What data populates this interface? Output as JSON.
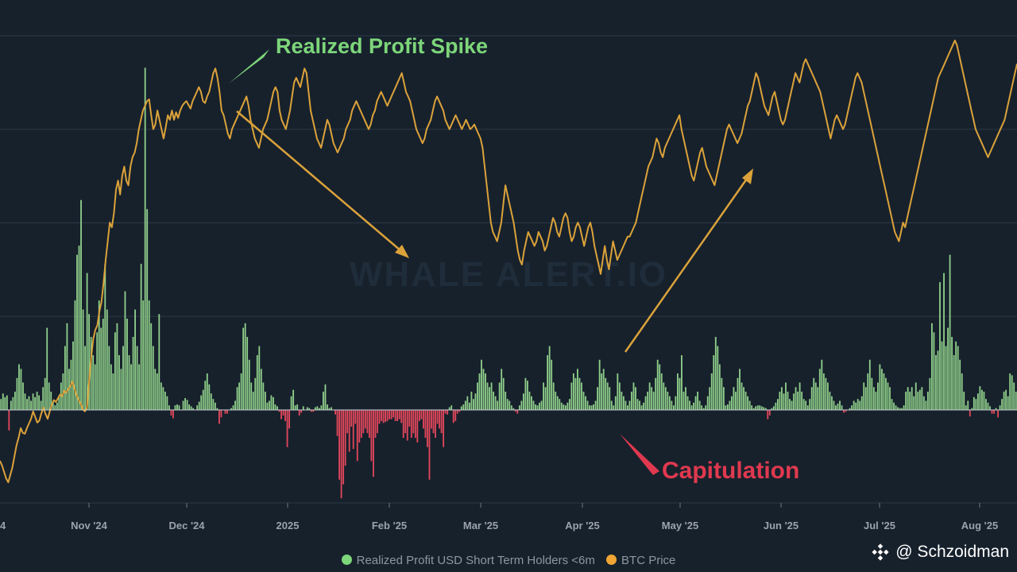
{
  "chart_data": {
    "type": "bar+line",
    "watermark": "WHALE ALERT.IO",
    "x_ticks": [
      "4",
      "Nov '24",
      "Dec '24",
      "2025",
      "Feb '25",
      "Mar '25",
      "Apr '25",
      "May '25",
      "Jun '25",
      "Jul '25",
      "Aug '25"
    ],
    "y_grid_lines": 5,
    "profit_range": [
      -1.0,
      4.1
    ],
    "price_range": [
      0.0,
      5.0
    ],
    "series": [
      {
        "name": "Realized Profit USD Short Term Holders <6m",
        "type": "bar",
        "color_positive": "#8fcf8a",
        "color_negative": "#e3475c",
        "values": [
          0.12,
          0.18,
          0.14,
          0.16,
          -0.22,
          0.1,
          0.14,
          0.2,
          0.35,
          0.5,
          0.45,
          0.3,
          0.18,
          0.12,
          0.15,
          0.1,
          0.18,
          0.14,
          0.2,
          0.16,
          0.1,
          0.25,
          0.35,
          0.9,
          0.3,
          0.2,
          0.1,
          0.05,
          0.08,
          0.15,
          0.3,
          0.4,
          0.7,
          0.95,
          0.45,
          0.55,
          0.75,
          1.2,
          1.7,
          1.8,
          2.3,
          1.1,
          0.7,
          1.5,
          1.05,
          0.8,
          0.6,
          0.5,
          0.85,
          1.2,
          0.9,
          1.0,
          1.6,
          1.1,
          0.7,
          0.5,
          0.4,
          0.85,
          0.95,
          0.6,
          0.45,
          0.7,
          1.3,
          1.0,
          0.6,
          0.5,
          0.8,
          1.1,
          0.7,
          0.5,
          1.6,
          1.2,
          3.75,
          2.2,
          1.2,
          0.95,
          0.7,
          0.45,
          0.4,
          1.05,
          0.3,
          0.25,
          0.2,
          0.15,
          0.05,
          -0.06,
          -0.09,
          0.05,
          0.06,
          0.05,
          0.0,
          0.1,
          0.13,
          0.11,
          0.06,
          0.04,
          0.02,
          0.0,
          0.05,
          0.09,
          0.16,
          0.22,
          0.32,
          0.4,
          0.28,
          0.18,
          0.12,
          0.08,
          0.02,
          -0.15,
          -0.08,
          0.0,
          -0.04,
          -0.04,
          0.0,
          0.02,
          0.05,
          0.1,
          0.25,
          0.3,
          0.4,
          0.9,
          0.95,
          0.8,
          0.55,
          0.3,
          0.2,
          0.35,
          0.6,
          0.7,
          0.45,
          0.3,
          0.2,
          0.08,
          0.1,
          0.16,
          0.14,
          0.06,
          0.04,
          -0.02,
          -0.1,
          -0.06,
          -0.12,
          -0.4,
          -0.2,
          0.15,
          0.22,
          0.05,
          0.06,
          -0.06,
          -0.03,
          0.04,
          0.0,
          0.03,
          0.02,
          -0.02,
          -0.02,
          0.03,
          0.04,
          0.02,
          0.05,
          0.2,
          0.28,
          0.06,
          0.02,
          0.03,
          0.0,
          -0.05,
          -0.28,
          -0.75,
          -0.95,
          -0.8,
          -0.6,
          -0.25,
          -0.45,
          -0.18,
          -0.42,
          -0.15,
          -0.55,
          -0.35,
          -0.3,
          -0.25,
          -0.2,
          -0.25,
          -0.3,
          -0.55,
          -0.72,
          -0.3,
          -0.25,
          -0.15,
          -0.12,
          -0.14,
          -0.13,
          -0.12,
          -0.1,
          -0.1,
          -0.08,
          -0.12,
          -0.12,
          -0.1,
          -0.14,
          -0.3,
          -0.25,
          -0.33,
          -0.18,
          -0.3,
          -0.25,
          -0.3,
          -0.35,
          -0.12,
          -0.1,
          -0.2,
          -0.3,
          -0.4,
          -0.75,
          -0.2,
          -0.25,
          -0.3,
          -0.15,
          -0.2,
          -0.25,
          -0.4,
          -0.04,
          -0.05,
          0.03,
          0.05,
          -0.14,
          -0.12,
          -0.04,
          -0.02,
          0.04,
          0.06,
          0.1,
          0.15,
          0.08,
          0.2,
          0.12,
          0.18,
          0.3,
          0.4,
          0.55,
          0.45,
          0.4,
          0.3,
          0.25,
          0.3,
          0.2,
          0.15,
          0.1,
          0.3,
          0.45,
          0.35,
          0.2,
          0.12,
          0.1,
          0.05,
          0.02,
          -0.02,
          -0.04,
          0.05,
          0.1,
          0.18,
          0.35,
          0.32,
          0.2,
          0.15,
          0.1,
          0.06,
          0.05,
          0.08,
          0.1,
          0.3,
          0.25,
          0.6,
          0.7,
          0.55,
          0.3,
          0.2,
          0.15,
          0.12,
          0.08,
          0.06,
          0.05,
          0.08,
          0.12,
          0.3,
          0.4,
          0.35,
          0.45,
          0.35,
          0.3,
          0.2,
          0.15,
          0.1,
          0.05,
          0.05,
          0.06,
          0.1,
          0.25,
          0.55,
          0.4,
          0.45,
          0.35,
          0.3,
          0.25,
          0.1,
          0.05,
          0.15,
          0.4,
          0.3,
          0.2,
          0.15,
          0.1,
          0.05,
          0.1,
          0.2,
          0.3,
          0.25,
          0.12,
          0.1,
          0.05,
          0.08,
          0.15,
          0.2,
          0.3,
          0.25,
          0.2,
          0.35,
          0.55,
          0.5,
          0.4,
          0.3,
          0.25,
          0.2,
          0.15,
          0.1,
          0.05,
          0.15,
          0.4,
          0.35,
          0.6,
          0.2,
          0.25,
          0.15,
          0.1,
          0.05,
          0.08,
          0.15,
          0.2,
          0.1,
          0.05,
          0.02,
          0.05,
          0.15,
          0.25,
          0.4,
          0.6,
          0.8,
          0.7,
          0.5,
          0.35,
          0.25,
          0.05,
          0.06,
          0.1,
          0.15,
          0.25,
          0.2,
          0.35,
          0.45,
          0.3,
          0.25,
          0.2,
          0.15,
          0.1,
          0.05,
          0.02,
          0.04,
          0.05,
          0.05,
          0.04,
          0.03,
          0.02,
          -0.1,
          -0.06,
          0.02,
          0.04,
          0.08,
          0.12,
          0.2,
          0.25,
          0.18,
          0.3,
          0.2,
          0.12,
          0.1,
          0.18,
          0.25,
          0.2,
          0.3,
          0.2,
          0.12,
          0.1,
          0.05,
          0.12,
          0.25,
          0.35,
          0.3,
          0.25,
          0.45,
          0.55,
          0.4,
          0.35,
          0.3,
          0.2,
          0.15,
          0.1,
          0.05,
          0.07,
          0.1,
          0.05,
          -0.03,
          -0.02,
          0.0,
          0.02,
          0.05,
          0.1,
          0.08,
          0.12,
          0.1,
          0.15,
          0.3,
          0.25,
          0.4,
          0.55,
          0.35,
          0.25,
          0.2,
          0.3,
          0.5,
          0.45,
          0.4,
          0.35,
          0.3,
          0.25,
          0.12,
          0.08,
          0.05,
          0.03,
          0.02,
          0.02,
          0.05,
          0.2,
          0.25,
          0.2,
          0.25,
          0.15,
          0.3,
          0.2,
          0.22,
          0.25,
          0.15,
          0.1,
          0.2,
          0.35,
          0.95,
          0.85,
          0.6,
          0.65,
          1.4,
          0.75,
          1.5,
          0.7,
          0.9,
          1.7,
          0.8,
          0.6,
          0.75,
          0.7,
          0.55,
          0.4,
          0.2,
          0.05,
          0.1,
          -0.07,
          0.02,
          0.14,
          0.12,
          0.18,
          0.26,
          0.22,
          0.2,
          0.12,
          0.08,
          0.04,
          -0.04,
          -0.04,
          0.02,
          -0.08,
          0.05,
          0.12,
          0.2,
          0.22,
          0.15,
          0.4,
          0.38,
          0.3,
          0.2
        ]
      },
      {
        "name": "BTC Price",
        "type": "line",
        "color": "#dba23a",
        "values": [
          0.45,
          0.4,
          0.33,
          0.26,
          0.22,
          0.3,
          0.38,
          0.5,
          0.62,
          0.7,
          0.8,
          0.75,
          0.74,
          0.8,
          0.85,
          0.9,
          0.98,
          0.92,
          0.86,
          0.88,
          0.96,
          1.02,
          0.95,
          0.9,
          0.98,
          1.05,
          1.1,
          1.08,
          1.12,
          1.16,
          1.14,
          1.2,
          1.18,
          1.22,
          1.25,
          1.3,
          1.22,
          1.15,
          1.1,
          1.06,
          1.0,
          0.98,
          1.02,
          1.3,
          1.55,
          1.75,
          1.85,
          1.9,
          2.05,
          2.15,
          2.35,
          2.6,
          2.8,
          3.0,
          2.95,
          3.1,
          3.35,
          3.45,
          3.3,
          3.5,
          3.6,
          3.45,
          3.4,
          3.6,
          3.7,
          3.75,
          3.85,
          4.0,
          4.1,
          4.2,
          4.25,
          4.3,
          4.32,
          4.15,
          4.0,
          4.05,
          4.2,
          4.1,
          4.0,
          3.9,
          4.02,
          4.15,
          4.1,
          4.2,
          4.1,
          4.18,
          4.12,
          4.2,
          4.25,
          4.28,
          4.3,
          4.26,
          4.22,
          4.3,
          4.35,
          4.4,
          4.45,
          4.4,
          4.3,
          4.28,
          4.35,
          4.4,
          4.5,
          4.6,
          4.65,
          4.55,
          4.4,
          4.2,
          4.15,
          4.05,
          3.95,
          3.9,
          4.0,
          4.05,
          4.1,
          4.15,
          4.2,
          4.25,
          4.3,
          4.35,
          4.25,
          4.1,
          4.0,
          3.9,
          3.85,
          3.8,
          3.9,
          4.0,
          4.05,
          4.1,
          4.2,
          4.3,
          4.4,
          4.45,
          4.4,
          4.2,
          4.1,
          4.05,
          4.0,
          4.1,
          4.2,
          4.35,
          4.5,
          4.55,
          4.5,
          4.45,
          4.55,
          4.65,
          4.6,
          4.4,
          4.2,
          4.1,
          4.0,
          3.9,
          3.85,
          3.8,
          3.9,
          4.0,
          4.1,
          4.05,
          3.95,
          3.85,
          3.8,
          3.75,
          3.8,
          3.85,
          3.9,
          4.0,
          4.05,
          4.1,
          4.2,
          4.25,
          4.3,
          4.25,
          4.2,
          4.15,
          4.1,
          4.05,
          4.0,
          4.05,
          4.15,
          4.2,
          4.3,
          4.35,
          4.4,
          4.35,
          4.3,
          4.25,
          4.3,
          4.35,
          4.4,
          4.45,
          4.5,
          4.55,
          4.6,
          4.5,
          4.4,
          4.35,
          4.3,
          4.2,
          4.1,
          4.0,
          3.95,
          3.9,
          3.85,
          3.9,
          4.0,
          4.05,
          4.1,
          4.2,
          4.3,
          4.35,
          4.3,
          4.25,
          4.2,
          4.1,
          4.05,
          4.0,
          4.05,
          4.1,
          4.15,
          4.1,
          4.05,
          4.0,
          4.05,
          4.1,
          4.05,
          4.0,
          4.02,
          4.05,
          4.0,
          3.95,
          3.9,
          3.8,
          3.6,
          3.4,
          3.2,
          3.0,
          2.9,
          2.85,
          2.8,
          2.9,
          3.0,
          3.2,
          3.4,
          3.3,
          3.2,
          3.1,
          3.0,
          2.85,
          2.7,
          2.6,
          2.55,
          2.7,
          2.8,
          2.9,
          2.85,
          2.8,
          2.75,
          2.8,
          2.9,
          2.85,
          2.8,
          2.7,
          2.75,
          2.85,
          2.95,
          3.05,
          3.0,
          2.9,
          2.85,
          2.95,
          3.05,
          3.1,
          3.05,
          2.9,
          2.8,
          2.85,
          2.95,
          3.0,
          2.95,
          2.85,
          2.75,
          2.85,
          2.95,
          3.0,
          2.9,
          2.75,
          2.65,
          2.55,
          2.45,
          2.6,
          2.75,
          2.6,
          2.5,
          2.65,
          2.8,
          2.7,
          2.6,
          2.65,
          2.7,
          2.75,
          2.8,
          2.85,
          2.85,
          2.9,
          2.95,
          3.0,
          3.1,
          3.2,
          3.3,
          3.4,
          3.5,
          3.6,
          3.65,
          3.7,
          3.8,
          3.9,
          3.85,
          3.75,
          3.7,
          3.8,
          3.85,
          3.9,
          3.95,
          4.0,
          4.05,
          4.1,
          4.15,
          4.0,
          3.9,
          3.8,
          3.7,
          3.6,
          3.5,
          3.45,
          3.55,
          3.65,
          3.75,
          3.8,
          3.7,
          3.6,
          3.55,
          3.5,
          3.45,
          3.4,
          3.5,
          3.6,
          3.7,
          3.8,
          3.9,
          4.0,
          4.05,
          4.0,
          3.95,
          3.9,
          3.85,
          3.9,
          3.95,
          4.05,
          4.15,
          4.25,
          4.3,
          4.4,
          4.5,
          4.6,
          4.55,
          4.45,
          4.35,
          4.25,
          4.2,
          4.15,
          4.25,
          4.35,
          4.4,
          4.3,
          4.2,
          4.1,
          4.05,
          4.1,
          4.2,
          4.3,
          4.4,
          4.5,
          4.6,
          4.55,
          4.5,
          4.6,
          4.7,
          4.75,
          4.7,
          4.65,
          4.6,
          4.55,
          4.5,
          4.45,
          4.4,
          4.3,
          4.2,
          4.1,
          4.0,
          3.9,
          4.0,
          4.1,
          4.15,
          4.1,
          4.05,
          4.0,
          4.05,
          4.15,
          4.25,
          4.35,
          4.45,
          4.55,
          4.6,
          4.55,
          4.5,
          4.4,
          4.3,
          4.2,
          4.1,
          4.0,
          3.9,
          3.8,
          3.7,
          3.6,
          3.5,
          3.4,
          3.3,
          3.2,
          3.1,
          3.0,
          2.9,
          2.85,
          2.8,
          2.9,
          3.0,
          2.95,
          3.05,
          3.15,
          3.25,
          3.35,
          3.45,
          3.55,
          3.65,
          3.75,
          3.85,
          3.95,
          4.05,
          4.15,
          4.25,
          4.35,
          4.45,
          4.55,
          4.6,
          4.65,
          4.7,
          4.75,
          4.8,
          4.85,
          4.9,
          4.95,
          4.9,
          4.8,
          4.7,
          4.6,
          4.5,
          4.4,
          4.3,
          4.2,
          4.1,
          4.0,
          3.95,
          3.9,
          3.85,
          3.8,
          3.75,
          3.7,
          3.75,
          3.8,
          3.85,
          3.9,
          3.95,
          4.0,
          4.05,
          4.1,
          4.2,
          4.3,
          4.4,
          4.5,
          4.6,
          4.7
        ]
      }
    ],
    "annotations": [
      {
        "text": "Realized Profit Spike",
        "color": "#7dd67a"
      },
      {
        "text": "Capitulation",
        "color": "#e0394f"
      }
    ]
  },
  "legend": [
    {
      "label": "Realized Profit USD Short Term Holders <6m",
      "color": "#7dd67a"
    },
    {
      "label": "BTC Price",
      "color": "#f0a534"
    }
  ],
  "credit": {
    "text": "@ Schzoidman"
  }
}
